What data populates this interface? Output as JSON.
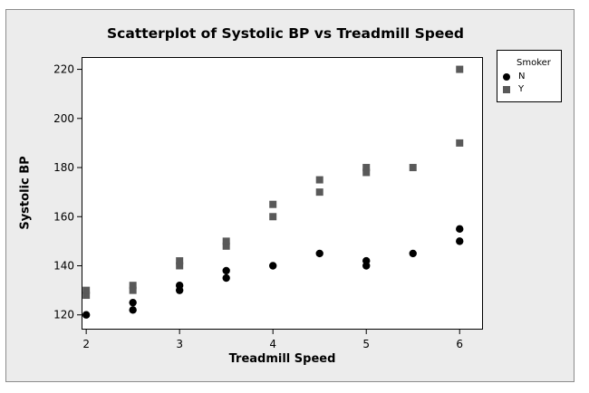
{
  "chart_data": {
    "type": "scatter",
    "title": "Scatterplot of Systolic BP vs Treadmill Speed",
    "xlabel": "Treadmill Speed",
    "ylabel": "Systolic BP",
    "xlim": [
      1.95,
      6.25
    ],
    "ylim": [
      114,
      225
    ],
    "x_ticks": [
      2,
      3,
      4,
      5,
      6
    ],
    "y_ticks": [
      120,
      140,
      160,
      180,
      200,
      220
    ],
    "grid": false,
    "legend": {
      "title": "Smoker",
      "position": "right"
    },
    "series": [
      {
        "name": "N",
        "marker": "circle",
        "color": "#000000",
        "points": [
          [
            2,
            120
          ],
          [
            2.5,
            122
          ],
          [
            2.5,
            125
          ],
          [
            3,
            130
          ],
          [
            3,
            132
          ],
          [
            3.5,
            135
          ],
          [
            3.5,
            138
          ],
          [
            4,
            140
          ],
          [
            4.5,
            145
          ],
          [
            5,
            140
          ],
          [
            5,
            142
          ],
          [
            5.5,
            145
          ],
          [
            6,
            150
          ],
          [
            6,
            155
          ]
        ]
      },
      {
        "name": "Y",
        "marker": "square",
        "color": "#595959",
        "points": [
          [
            2,
            128
          ],
          [
            2,
            130
          ],
          [
            2.5,
            130
          ],
          [
            2.5,
            132
          ],
          [
            3,
            140
          ],
          [
            3,
            142
          ],
          [
            3.5,
            148
          ],
          [
            3.5,
            150
          ],
          [
            4,
            160
          ],
          [
            4,
            165
          ],
          [
            4.5,
            170
          ],
          [
            4.5,
            175
          ],
          [
            5,
            178
          ],
          [
            5,
            180
          ],
          [
            5.5,
            180
          ],
          [
            6,
            190
          ],
          [
            6,
            220
          ]
        ]
      }
    ]
  }
}
